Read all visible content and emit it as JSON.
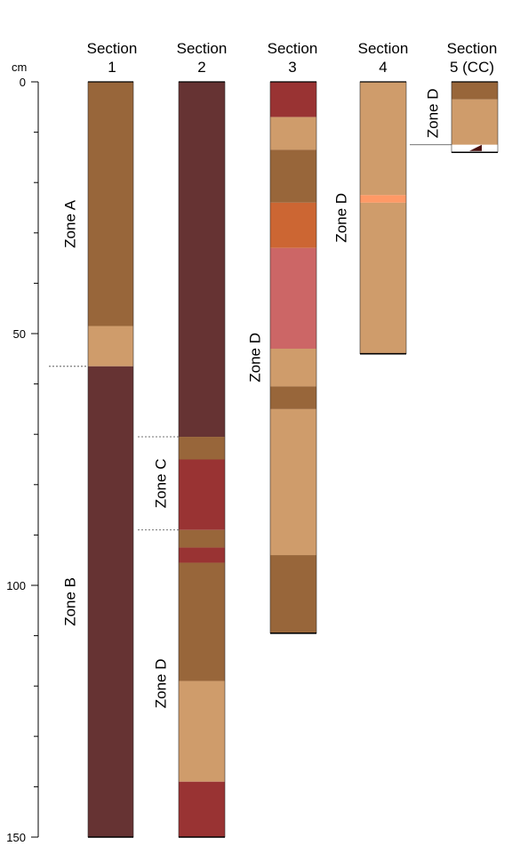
{
  "axis": {
    "unit": "cm",
    "ticks": [
      0,
      50,
      100,
      150
    ],
    "range": [
      0,
      150
    ]
  },
  "colors": {
    "brown": "#98663a",
    "tan": "#cf9c6b",
    "maroon": "#663333",
    "red": "#993333",
    "orange": "#cc6633",
    "pink": "#cc6666",
    "light_orange": "#ff9966"
  },
  "sections": [
    {
      "line1": "Section",
      "line2": "1",
      "length_cm": 150,
      "intervals": [
        {
          "top": 0,
          "bottom": 48.5,
          "color": "brown"
        },
        {
          "top": 48.5,
          "bottom": 56.5,
          "color": "tan"
        },
        {
          "top": 56.5,
          "bottom": 150,
          "color": "maroon"
        }
      ]
    },
    {
      "line1": "Section",
      "line2": "2",
      "length_cm": 150,
      "intervals": [
        {
          "top": 0,
          "bottom": 70.5,
          "color": "maroon"
        },
        {
          "top": 70.5,
          "bottom": 75,
          "color": "brown"
        },
        {
          "top": 75,
          "bottom": 89,
          "color": "red"
        },
        {
          "top": 89,
          "bottom": 92.5,
          "color": "brown"
        },
        {
          "top": 92.5,
          "bottom": 95.5,
          "color": "red"
        },
        {
          "top": 95.5,
          "bottom": 119,
          "color": "brown"
        },
        {
          "top": 119,
          "bottom": 139,
          "color": "tan"
        },
        {
          "top": 139,
          "bottom": 150,
          "color": "red"
        }
      ]
    },
    {
      "line1": "Section",
      "line2": "3",
      "length_cm": 109.5,
      "intervals": [
        {
          "top": 0,
          "bottom": 7,
          "color": "red"
        },
        {
          "top": 7,
          "bottom": 13.5,
          "color": "tan"
        },
        {
          "top": 13.5,
          "bottom": 24,
          "color": "brown"
        },
        {
          "top": 24,
          "bottom": 33,
          "color": "orange"
        },
        {
          "top": 33,
          "bottom": 53,
          "color": "pink"
        },
        {
          "top": 53,
          "bottom": 60.5,
          "color": "tan"
        },
        {
          "top": 60.5,
          "bottom": 65,
          "color": "brown"
        },
        {
          "top": 65,
          "bottom": 94,
          "color": "tan"
        },
        {
          "top": 94,
          "bottom": 109.5,
          "color": "brown"
        }
      ]
    },
    {
      "line1": "Section",
      "line2": "4",
      "length_cm": 54,
      "intervals": [
        {
          "top": 0,
          "bottom": 22.5,
          "color": "tan"
        },
        {
          "top": 22.5,
          "bottom": 24,
          "color": "light_orange"
        },
        {
          "top": 24,
          "bottom": 54,
          "color": "tan"
        }
      ]
    },
    {
      "line1": "Section",
      "line2": "5 (CC)",
      "length_cm": 14,
      "intervals": [
        {
          "top": 0,
          "bottom": 3.5,
          "color": "brown"
        },
        {
          "top": 3.5,
          "bottom": 12.5,
          "color": "tan"
        },
        {
          "top": 12.5,
          "bottom": 14,
          "color": "white"
        }
      ]
    }
  ],
  "zones": [
    {
      "label": "Zone A",
      "section": 1,
      "from": 0,
      "to": 56.5
    },
    {
      "label": "Zone B",
      "section": 1,
      "from": 56.5,
      "to": 150
    },
    {
      "label": "Zone C",
      "section": 2,
      "from": 70.5,
      "to": 89
    },
    {
      "label": "Zone D",
      "section": 2,
      "from": 89,
      "to": 150
    },
    {
      "label": "Zone D",
      "section": 3,
      "from": 0,
      "to": 109.5
    },
    {
      "label": "Zone D",
      "section": 4,
      "from": 0,
      "to": 54
    },
    {
      "label": "Zone D",
      "section": 5,
      "from": 0,
      "to": 12.5
    }
  ],
  "boundaries": [
    {
      "section": 1,
      "depth": 56.5,
      "style": "dashed"
    },
    {
      "section": 2,
      "depth": 70.5,
      "style": "dashed"
    },
    {
      "section": 2,
      "depth": 89,
      "style": "dashed"
    },
    {
      "section": 5,
      "depth": 12.5,
      "style": "solid"
    }
  ]
}
